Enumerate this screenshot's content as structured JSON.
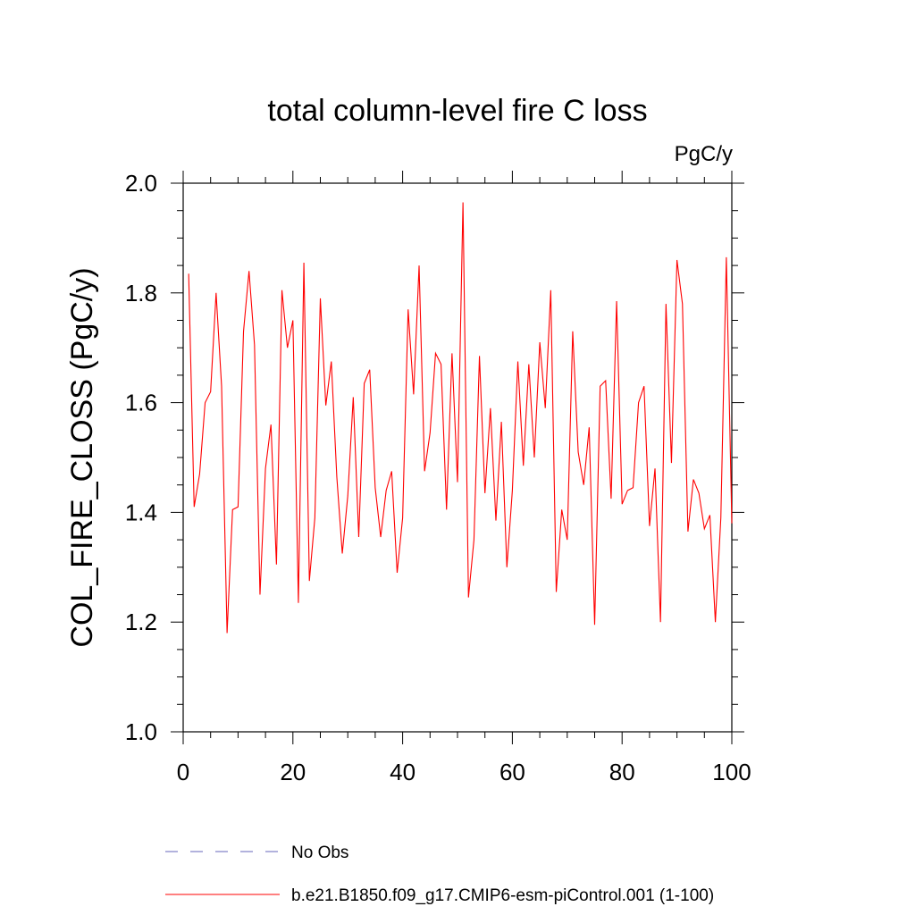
{
  "chart_data": {
    "type": "line",
    "title": "total column-level fire C loss",
    "units": "PgC/y",
    "xlabel": "",
    "ylabel": "COL_FIRE_CLOSS  (PgC/y)",
    "xlim": [
      0,
      100
    ],
    "ylim": [
      1.0,
      2.0
    ],
    "x_ticks": [
      0,
      20,
      40,
      60,
      80,
      100
    ],
    "x_tick_labels": [
      "0",
      "20",
      "40",
      "60",
      "80",
      "100"
    ],
    "y_ticks": [
      1.0,
      1.2,
      1.4,
      1.6,
      1.8,
      2.0
    ],
    "y_tick_labels": [
      "1.0",
      "1.2",
      "1.4",
      "1.6",
      "1.8",
      "2.0"
    ],
    "grid": false,
    "legend_position": "bottom",
    "legend": [
      {
        "label": "No Obs",
        "color": "#6666bb",
        "style": "dashed"
      },
      {
        "label": "b.e21.B1850.f09_g17.CMIP6-esm-piControl.001 (1-100)",
        "color": "#ff0000",
        "style": "solid"
      }
    ],
    "series": [
      {
        "name": "b.e21.B1850.f09_g17.CMIP6-esm-piControl.001 (1-100)",
        "color": "#ff0000",
        "x": [
          1,
          2,
          3,
          4,
          5,
          6,
          7,
          8,
          9,
          10,
          11,
          12,
          13,
          14,
          15,
          16,
          17,
          18,
          19,
          20,
          21,
          22,
          23,
          24,
          25,
          26,
          27,
          28,
          29,
          30,
          31,
          32,
          33,
          34,
          35,
          36,
          37,
          38,
          39,
          40,
          41,
          42,
          43,
          44,
          45,
          46,
          47,
          48,
          49,
          50,
          51,
          52,
          53,
          54,
          55,
          56,
          57,
          58,
          59,
          60,
          61,
          62,
          63,
          64,
          65,
          66,
          67,
          68,
          69,
          70,
          71,
          72,
          73,
          74,
          75,
          76,
          77,
          78,
          79,
          80,
          81,
          82,
          83,
          84,
          85,
          86,
          87,
          88,
          89,
          90,
          91,
          92,
          93,
          94,
          95,
          96,
          97,
          98,
          99,
          100
        ],
        "values": [
          1.835,
          1.41,
          1.47,
          1.6,
          1.62,
          1.8,
          1.63,
          1.18,
          1.405,
          1.41,
          1.73,
          1.84,
          1.705,
          1.25,
          1.48,
          1.56,
          1.305,
          1.805,
          1.7,
          1.75,
          1.235,
          1.855,
          1.275,
          1.39,
          1.79,
          1.595,
          1.675,
          1.465,
          1.325,
          1.43,
          1.61,
          1.355,
          1.635,
          1.66,
          1.445,
          1.355,
          1.44,
          1.475,
          1.29,
          1.39,
          1.77,
          1.615,
          1.85,
          1.475,
          1.545,
          1.69,
          1.67,
          1.405,
          1.69,
          1.455,
          1.965,
          1.245,
          1.35,
          1.685,
          1.435,
          1.59,
          1.385,
          1.565,
          1.3,
          1.44,
          1.675,
          1.485,
          1.67,
          1.5,
          1.71,
          1.59,
          1.805,
          1.255,
          1.405,
          1.35,
          1.73,
          1.51,
          1.45,
          1.555,
          1.195,
          1.63,
          1.64,
          1.425,
          1.785,
          1.415,
          1.44,
          1.445,
          1.6,
          1.63,
          1.375,
          1.48,
          1.2,
          1.78,
          1.49,
          1.86,
          1.78,
          1.365,
          1.46,
          1.435,
          1.37,
          1.395,
          1.2,
          1.39,
          1.865,
          1.38
        ]
      }
    ]
  }
}
